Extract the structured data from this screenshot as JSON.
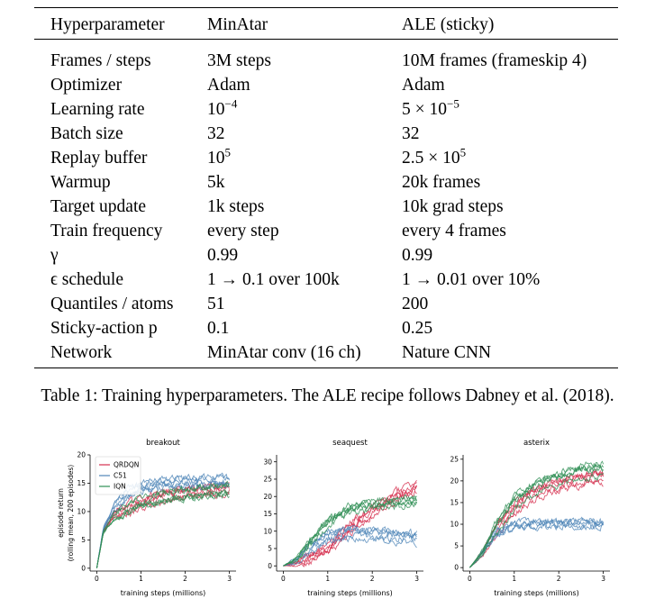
{
  "table": {
    "headers": [
      "Hyperparameter",
      "MinAtar",
      "ALE (sticky)"
    ],
    "rows": [
      {
        "param": "Frames / steps",
        "minatar": "3M steps",
        "ale": "10M frames (frameskip 4)"
      },
      {
        "param": "Optimizer",
        "minatar": "Adam",
        "ale": "Adam"
      },
      {
        "param": "Learning rate",
        "minatar": "10^−4",
        "ale": "5 × 10^−5"
      },
      {
        "param": "Batch size",
        "minatar": "32",
        "ale": "32"
      },
      {
        "param": "Replay buffer",
        "minatar": "10^5",
        "ale": "2.5 × 10^5"
      },
      {
        "param": "Warmup",
        "minatar": "5k",
        "ale": "20k frames"
      },
      {
        "param": "Target update",
        "minatar": "1k steps",
        "ale": "10k grad steps"
      },
      {
        "param": "Train frequency",
        "minatar": "every step",
        "ale": "every 4 frames"
      },
      {
        "param": "γ",
        "minatar": "0.99",
        "ale": "0.99"
      },
      {
        "param": "ϵ schedule",
        "minatar": "1 → 0.1 over 100k",
        "ale": "1 → 0.01 over 10%"
      },
      {
        "param": "Quantiles / atoms",
        "minatar": "51",
        "ale": "200"
      },
      {
        "param": "Sticky-action p",
        "minatar": "0.1",
        "ale": "0.25"
      },
      {
        "param": "Network",
        "minatar": "MinAtar conv (16 ch)",
        "ale": "Nature CNN"
      }
    ]
  },
  "caption": "Table 1: Training hyperparameters. The ALE recipe follows Dabney et al. (2018).",
  "chart_data": [
    {
      "type": "line",
      "title": "breakout",
      "xlabel": "training steps (millions)",
      "ylabel": "episode return\n(rolling mean, 200 episodes)",
      "xlim": [
        -0.15,
        3.15
      ],
      "ylim": [
        -0.5,
        20
      ],
      "xticks": [
        0,
        1,
        2,
        3
      ],
      "yticks": [
        0,
        5,
        10,
        15,
        20
      ],
      "legend": "top-left",
      "series": [
        {
          "name": "QRDQN",
          "color": "#d62e4e",
          "x": [
            0,
            0.15,
            0.4,
            0.7,
            1.0,
            1.5,
            2.0,
            2.5,
            3.0
          ],
          "y": [
            0,
            6.5,
            9.5,
            10.5,
            11.5,
            12.5,
            13.2,
            13.8,
            14.2
          ]
        },
        {
          "name": "C51",
          "color": "#4f86b8",
          "x": [
            0,
            0.15,
            0.4,
            0.7,
            1.0,
            1.5,
            2.0,
            2.5,
            3.0
          ],
          "y": [
            0,
            7,
            11,
            13.5,
            14.5,
            15.2,
            15.5,
            15.5,
            15.6
          ]
        },
        {
          "name": "IQN",
          "color": "#2f8f55",
          "x": [
            0,
            0.15,
            0.4,
            0.7,
            1.0,
            1.5,
            2.0,
            2.5,
            3.0
          ],
          "y": [
            0,
            6.5,
            9.5,
            11,
            12,
            13,
            13.6,
            14,
            14.3
          ]
        }
      ]
    },
    {
      "type": "line",
      "title": "seaquest",
      "xlabel": "training steps (millions)",
      "ylabel": "",
      "xlim": [
        -0.15,
        3.15
      ],
      "ylim": [
        -1.5,
        32
      ],
      "xticks": [
        0,
        1,
        2,
        3
      ],
      "yticks": [
        0,
        5,
        10,
        15,
        20,
        25,
        30
      ],
      "series": [
        {
          "name": "QRDQN",
          "color": "#d62e4e",
          "x": [
            0,
            0.3,
            0.6,
            1.0,
            1.5,
            2.0,
            2.5,
            3.0
          ],
          "y": [
            0,
            0.6,
            2,
            5,
            11,
            16,
            20,
            23
          ]
        },
        {
          "name": "C51",
          "color": "#4f86b8",
          "x": [
            0,
            0.3,
            0.6,
            1.0,
            1.5,
            2.0,
            2.5,
            3.0
          ],
          "y": [
            0,
            1.5,
            5,
            8.5,
            9.2,
            9,
            8.5,
            8.2
          ]
        },
        {
          "name": "IQN",
          "color": "#2f8f55",
          "x": [
            0,
            0.3,
            0.6,
            1.0,
            1.5,
            2.0,
            2.5,
            3.0
          ],
          "y": [
            0,
            2,
            7,
            13,
            16.5,
            18,
            18.5,
            19
          ]
        }
      ]
    },
    {
      "type": "line",
      "title": "asterix",
      "xlabel": "training steps (millions)",
      "ylabel": "",
      "xlim": [
        -0.15,
        3.15
      ],
      "ylim": [
        -0.8,
        26
      ],
      "xticks": [
        0,
        1,
        2,
        3
      ],
      "yticks": [
        0,
        5,
        10,
        15,
        20,
        25
      ],
      "series": [
        {
          "name": "QRDQN",
          "color": "#d62e4e",
          "x": [
            0,
            0.3,
            0.6,
            1.0,
            1.5,
            2.0,
            2.5,
            3.0
          ],
          "y": [
            0,
            3.5,
            9,
            14,
            17.5,
            19.5,
            20.5,
            21
          ]
        },
        {
          "name": "C51",
          "color": "#4f86b8",
          "x": [
            0,
            0.3,
            0.6,
            1.0,
            1.5,
            2.0,
            2.5,
            3.0
          ],
          "y": [
            0,
            3.5,
            8,
            9.8,
            10,
            10,
            10,
            10
          ]
        },
        {
          "name": "IQN",
          "color": "#2f8f55",
          "x": [
            0,
            0.3,
            0.6,
            1.0,
            1.5,
            2.0,
            2.5,
            3.0
          ],
          "y": [
            0,
            3.5,
            9.5,
            15,
            18.5,
            20.5,
            22,
            22.5
          ]
        }
      ]
    }
  ]
}
